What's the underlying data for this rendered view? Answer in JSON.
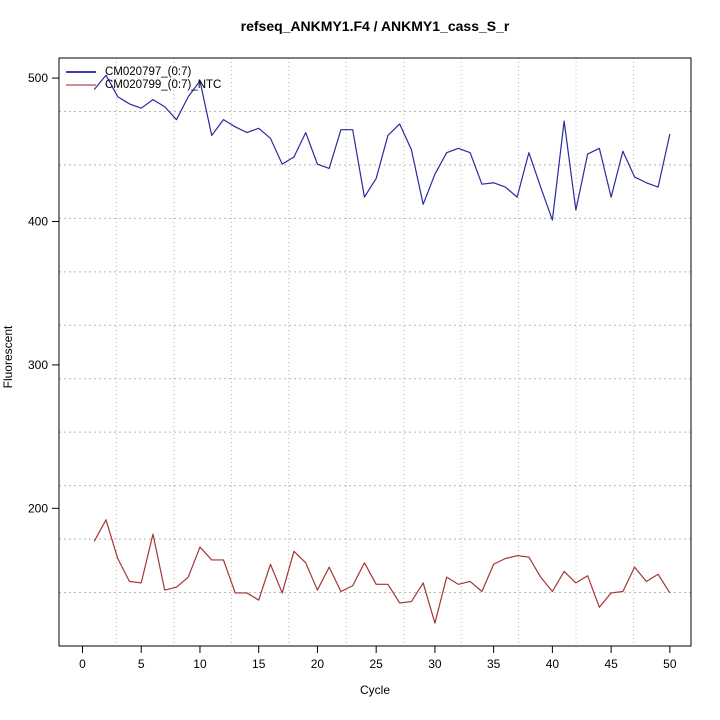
{
  "chart_data": {
    "type": "line",
    "title": "refseq_ANKMY1.F4 / ANKMY1_cass_S_r",
    "xlabel": "Cycle",
    "ylabel": "Fluorescent",
    "x": [
      1,
      2,
      3,
      4,
      5,
      6,
      7,
      8,
      9,
      10,
      11,
      12,
      13,
      14,
      15,
      16,
      17,
      18,
      19,
      20,
      21,
      22,
      23,
      24,
      25,
      26,
      27,
      28,
      29,
      30,
      31,
      32,
      33,
      34,
      35,
      36,
      37,
      38,
      39,
      40,
      41,
      42,
      43,
      44,
      45,
      46,
      47,
      48,
      49,
      50
    ],
    "series": [
      {
        "name": "CM020797_(0:7)",
        "color": "#2a2aa0",
        "legend_color": "#3c3cae",
        "values": [
          492,
          502,
          487,
          482,
          479,
          485,
          480,
          471,
          487,
          498,
          460,
          471,
          466,
          462,
          465,
          458,
          440,
          445,
          462,
          440,
          437,
          464,
          464,
          417,
          430,
          460,
          468,
          450,
          412,
          433,
          448,
          451,
          448,
          426,
          427,
          424,
          417,
          448,
          424,
          401,
          470,
          408,
          447,
          451,
          417,
          449,
          431,
          427,
          424,
          461
        ]
      },
      {
        "name": "CM020799_(0:7)_NTC",
        "color": "#a33535",
        "legend_color": "#cc8f8f",
        "values": [
          177,
          192,
          165,
          149,
          148,
          182,
          143,
          145,
          152,
          173,
          164,
          164,
          141,
          141,
          136,
          161,
          141,
          170,
          162,
          143,
          159,
          142,
          146,
          162,
          147,
          147,
          134,
          135,
          148,
          120,
          152,
          147,
          149,
          142,
          161,
          165,
          167,
          166,
          152,
          142,
          156,
          148,
          153,
          131,
          141,
          142,
          159,
          149,
          154,
          141
        ]
      }
    ],
    "x_ticks": [
      0,
      5,
      10,
      15,
      20,
      25,
      30,
      35,
      40,
      45,
      50
    ],
    "y_ticks": [
      200,
      300,
      400,
      500
    ],
    "xlim": [
      -2,
      51.8
    ],
    "ylim": [
      104,
      514
    ],
    "grid": {
      "on": true,
      "nx": 11,
      "ny": 11
    },
    "legend_position": "top-left"
  }
}
